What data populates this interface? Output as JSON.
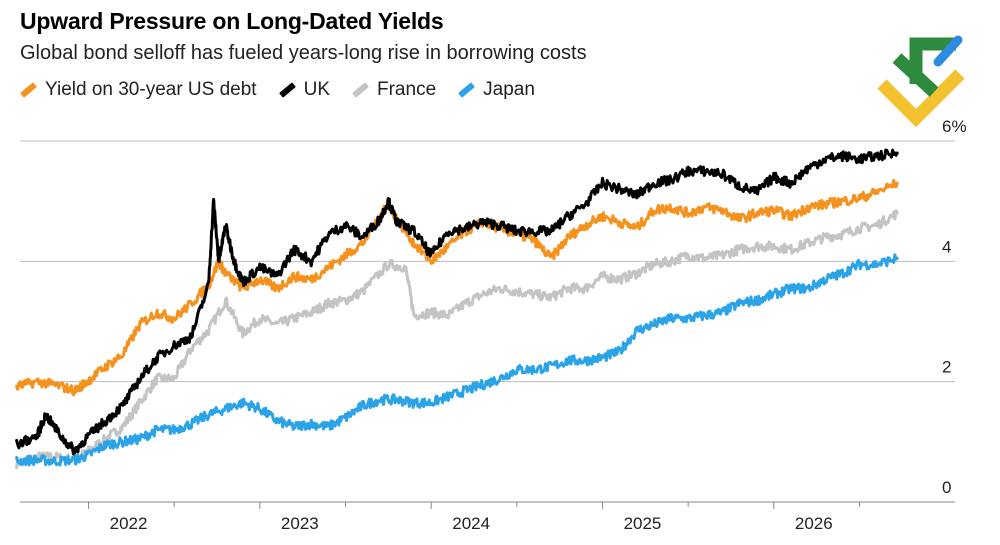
{
  "header": {
    "title": "Upward Pressure on Long-Dated Yields",
    "subtitle": "Global bond selloff has fueled years-long rise in borrowing costs"
  },
  "colors": {
    "us": "#F5921E",
    "uk": "#000000",
    "france": "#C4C4C4",
    "japan": "#2AA3E8",
    "grid": "#BDBDBD"
  },
  "logo": {
    "name": "brand-logo",
    "colors": [
      "#2E8B3E",
      "#2D8CE0",
      "#F2C230"
    ]
  },
  "chart_data": {
    "type": "line",
    "title": "Upward Pressure on Long-Dated Yields",
    "subtitle": "Global bond selloff has fueled years-long rise in borrowing costs",
    "xlabel": "",
    "ylabel": "",
    "xlim": [
      2021.6,
      2026.9
    ],
    "ylim": [
      0,
      6
    ],
    "y_ticks": [
      0,
      2,
      4,
      6
    ],
    "y_tick_labels": [
      "0",
      "2",
      "4",
      "6%"
    ],
    "x_tick_labels": [
      "2022",
      "2023",
      "2024",
      "2025",
      "2026"
    ],
    "grid": true,
    "legend_position": "top-left",
    "series": [
      {
        "name": "Yield on 30-year US debt",
        "key": "us",
        "x": [
          2021.58,
          2021.7,
          2021.8,
          2021.92,
          2022.0,
          2022.1,
          2022.2,
          2022.3,
          2022.4,
          2022.5,
          2022.6,
          2022.7,
          2022.76,
          2022.8,
          2022.9,
          2023.0,
          2023.1,
          2023.2,
          2023.3,
          2023.4,
          2023.5,
          2023.6,
          2023.75,
          2023.8,
          2023.9,
          2024.0,
          2024.1,
          2024.2,
          2024.3,
          2024.4,
          2024.5,
          2024.6,
          2024.7,
          2024.8,
          2024.9,
          2025.0,
          2025.1,
          2025.2,
          2025.3,
          2025.4,
          2025.5,
          2025.6,
          2025.7,
          2025.8,
          2025.9,
          2026.0,
          2026.1,
          2026.2,
          2026.3,
          2026.4,
          2026.5,
          2026.6,
          2026.72
        ],
        "y": [
          1.92,
          2.0,
          1.95,
          1.85,
          2.02,
          2.25,
          2.45,
          2.95,
          3.15,
          3.05,
          3.3,
          3.6,
          4.0,
          3.8,
          3.55,
          3.7,
          3.55,
          3.75,
          3.7,
          3.9,
          4.1,
          4.3,
          4.95,
          4.7,
          4.3,
          4.0,
          4.25,
          4.5,
          4.65,
          4.55,
          4.45,
          4.35,
          4.05,
          4.4,
          4.6,
          4.75,
          4.65,
          4.55,
          4.85,
          4.9,
          4.8,
          4.9,
          4.85,
          4.7,
          4.8,
          4.85,
          4.75,
          4.9,
          4.95,
          5.0,
          5.05,
          5.15,
          5.3
        ]
      },
      {
        "name": "UK",
        "key": "uk",
        "x": [
          2021.58,
          2021.7,
          2021.75,
          2021.85,
          2021.92,
          2022.0,
          2022.1,
          2022.2,
          2022.3,
          2022.4,
          2022.5,
          2022.6,
          2022.7,
          2022.73,
          2022.76,
          2022.8,
          2022.85,
          2022.9,
          2023.0,
          2023.1,
          2023.2,
          2023.3,
          2023.4,
          2023.5,
          2023.6,
          2023.7,
          2023.75,
          2023.8,
          2023.9,
          2024.0,
          2024.1,
          2024.2,
          2024.3,
          2024.4,
          2024.5,
          2024.6,
          2024.7,
          2024.8,
          2024.9,
          2025.0,
          2025.1,
          2025.2,
          2025.3,
          2025.4,
          2025.5,
          2025.6,
          2025.7,
          2025.8,
          2025.9,
          2026.0,
          2026.1,
          2026.2,
          2026.3,
          2026.4,
          2026.5,
          2026.6,
          2026.72
        ],
        "y": [
          0.95,
          1.1,
          1.45,
          1.05,
          0.85,
          1.1,
          1.35,
          1.6,
          2.05,
          2.4,
          2.6,
          2.75,
          3.6,
          5.0,
          4.0,
          4.6,
          4.0,
          3.65,
          3.9,
          3.75,
          4.2,
          4.0,
          4.45,
          4.6,
          4.4,
          4.7,
          5.0,
          4.65,
          4.5,
          4.1,
          4.5,
          4.55,
          4.65,
          4.6,
          4.5,
          4.5,
          4.5,
          4.75,
          4.95,
          5.3,
          5.2,
          5.1,
          5.3,
          5.35,
          5.5,
          5.5,
          5.45,
          5.25,
          5.15,
          5.4,
          5.3,
          5.55,
          5.7,
          5.75,
          5.7,
          5.75,
          5.8
        ]
      },
      {
        "name": "France",
        "key": "france",
        "x": [
          2021.58,
          2021.7,
          2021.8,
          2021.92,
          2022.0,
          2022.1,
          2022.2,
          2022.3,
          2022.4,
          2022.5,
          2022.6,
          2022.7,
          2022.8,
          2022.9,
          2023.0,
          2023.1,
          2023.2,
          2023.3,
          2023.4,
          2023.5,
          2023.6,
          2023.75,
          2023.85,
          2023.9,
          2024.0,
          2024.1,
          2024.2,
          2024.3,
          2024.4,
          2024.5,
          2024.6,
          2024.7,
          2024.8,
          2024.9,
          2025.0,
          2025.1,
          2025.2,
          2025.3,
          2025.4,
          2025.5,
          2025.6,
          2025.7,
          2025.8,
          2025.9,
          2026.0,
          2026.1,
          2026.2,
          2026.3,
          2026.4,
          2026.5,
          2026.6,
          2026.72
        ],
        "y": [
          0.65,
          0.75,
          0.75,
          0.7,
          0.85,
          1.05,
          1.25,
          1.65,
          2.05,
          2.05,
          2.55,
          2.85,
          3.35,
          2.8,
          3.05,
          2.95,
          3.05,
          3.15,
          3.3,
          3.35,
          3.5,
          3.95,
          3.9,
          3.1,
          3.15,
          3.1,
          3.3,
          3.45,
          3.55,
          3.5,
          3.45,
          3.4,
          3.55,
          3.55,
          3.75,
          3.7,
          3.8,
          3.95,
          4.0,
          4.1,
          4.05,
          4.1,
          4.2,
          4.25,
          4.25,
          4.2,
          4.3,
          4.4,
          4.45,
          4.55,
          4.6,
          4.8
        ]
      },
      {
        "name": "Japan",
        "key": "japan",
        "x": [
          2021.58,
          2021.7,
          2021.8,
          2021.92,
          2022.0,
          2022.1,
          2022.2,
          2022.3,
          2022.4,
          2022.5,
          2022.6,
          2022.7,
          2022.8,
          2022.9,
          2023.0,
          2023.1,
          2023.2,
          2023.3,
          2023.4,
          2023.5,
          2023.6,
          2023.7,
          2023.8,
          2023.9,
          2024.0,
          2024.1,
          2024.2,
          2024.3,
          2024.4,
          2024.5,
          2024.6,
          2024.7,
          2024.8,
          2024.9,
          2025.0,
          2025.1,
          2025.2,
          2025.3,
          2025.4,
          2025.5,
          2025.6,
          2025.7,
          2025.8,
          2025.9,
          2026.0,
          2026.1,
          2026.2,
          2026.3,
          2026.4,
          2026.5,
          2026.6,
          2026.72
        ],
        "y": [
          0.68,
          0.7,
          0.68,
          0.7,
          0.78,
          0.95,
          1.0,
          1.05,
          1.2,
          1.2,
          1.3,
          1.45,
          1.55,
          1.65,
          1.55,
          1.35,
          1.25,
          1.3,
          1.25,
          1.4,
          1.6,
          1.7,
          1.7,
          1.65,
          1.65,
          1.75,
          1.85,
          1.95,
          2.05,
          2.2,
          2.2,
          2.25,
          2.35,
          2.35,
          2.4,
          2.5,
          2.85,
          2.95,
          3.05,
          3.05,
          3.1,
          3.15,
          3.3,
          3.35,
          3.45,
          3.55,
          3.55,
          3.7,
          3.8,
          3.95,
          3.95,
          4.05
        ]
      }
    ]
  }
}
